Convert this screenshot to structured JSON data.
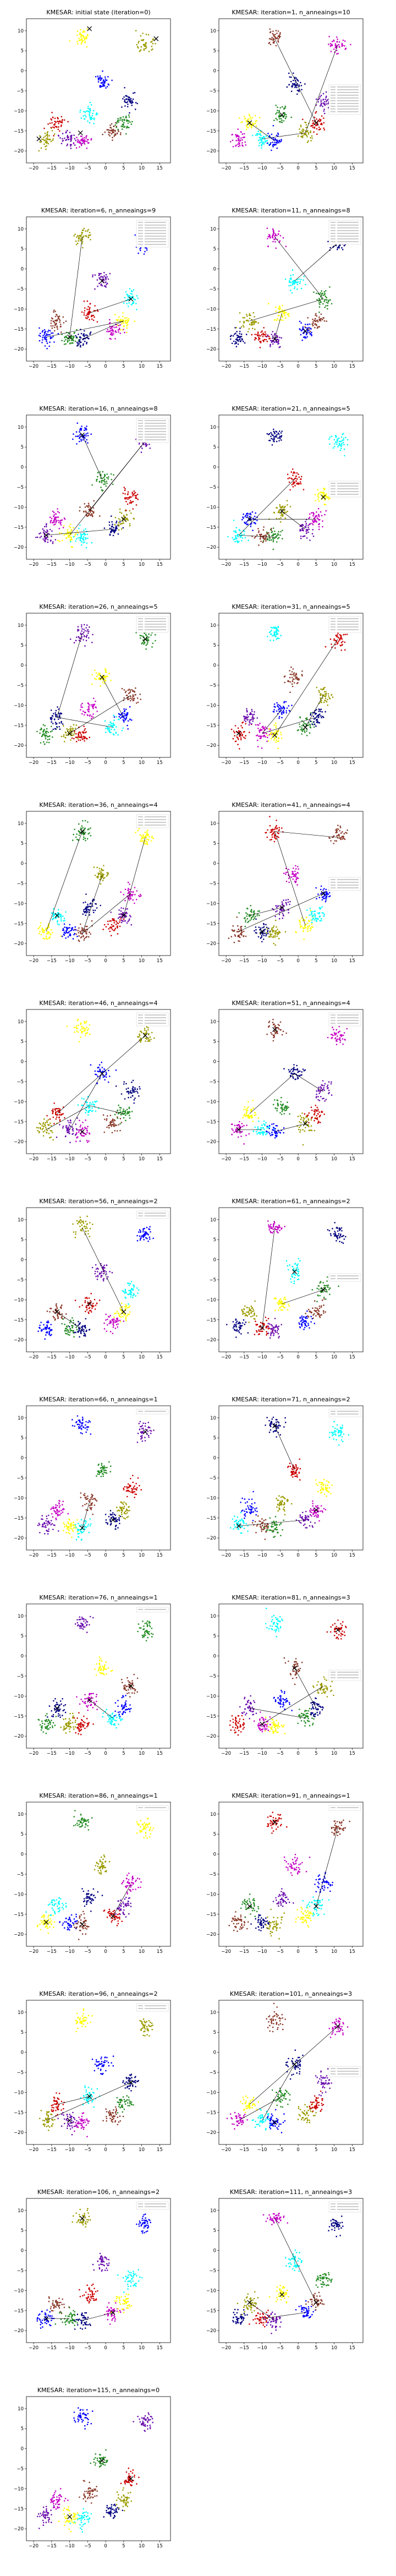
{
  "figure": {
    "cluster_colors": [
      "#9b9b00",
      "#cc0000",
      "#6a0dad",
      "#c400c4",
      "#ffff00",
      "#00ffff",
      "#0000ff",
      "#8b3a2a",
      "#228b22",
      "#000080"
    ],
    "panels": [
      {
        "title": "KMESAR: initial state (iteration=0)",
        "legend_entries": 0
      },
      {
        "title": "KMESAR: iteration=1, n_anneaings=10",
        "legend_entries": 10
      },
      {
        "title": "KMESAR: iteration=6, n_anneaings=9",
        "legend_entries": 9
      },
      {
        "title": "KMESAR: iteration=11, n_anneaings=8",
        "legend_entries": 8
      },
      {
        "title": "KMESAR: iteration=16, n_anneaings=8",
        "legend_entries": 8
      },
      {
        "title": "KMESAR: iteration=21, n_anneaings=5",
        "legend_entries": 5
      },
      {
        "title": "KMESAR: iteration=26, n_anneaings=5",
        "legend_entries": 5
      },
      {
        "title": "KMESAR: iteration=31, n_anneaings=5",
        "legend_entries": 5
      },
      {
        "title": "KMESAR: iteration=36, n_anneaings=4",
        "legend_entries": 4
      },
      {
        "title": "KMESAR: iteration=41, n_anneaings=4",
        "legend_entries": 4
      },
      {
        "title": "KMESAR: iteration=46, n_anneaings=4",
        "legend_entries": 4
      },
      {
        "title": "KMESAR: iteration=51, n_anneaings=4",
        "legend_entries": 4
      },
      {
        "title": "KMESAR: iteration=56, n_anneaings=2",
        "legend_entries": 2
      },
      {
        "title": "KMESAR: iteration=61, n_anneaings=2",
        "legend_entries": 2
      },
      {
        "title": "KMESAR: iteration=66, n_anneaings=1",
        "legend_entries": 1
      },
      {
        "title": "KMESAR: iteration=71, n_anneaings=2",
        "legend_entries": 2
      },
      {
        "title": "KMESAR: iteration=76, n_anneaings=1",
        "legend_entries": 1
      },
      {
        "title": "KMESAR: iteration=81, n_anneaings=3",
        "legend_entries": 3
      },
      {
        "title": "KMESAR: iteration=86, n_anneaings=1",
        "legend_entries": 1
      },
      {
        "title": "KMESAR: iteration=91, n_anneaings=1",
        "legend_entries": 1
      },
      {
        "title": "KMESAR: iteration=96, n_anneaings=2",
        "legend_entries": 2
      },
      {
        "title": "KMESAR: iteration=101, n_anneaings=3",
        "legend_entries": 3
      },
      {
        "title": "KMESAR: iteration=106, n_anneaings=2",
        "legend_entries": 2
      },
      {
        "title": "KMESAR: iteration=111, n_anneaings=3",
        "legend_entries": 3
      },
      {
        "title": "KMESAR: iteration=115, n_anneaings=0",
        "legend_entries": 0
      }
    ]
  },
  "chart_data": {
    "type": "scatter",
    "subplots": 25,
    "layout": "13 rows x 2 columns",
    "xlim": [
      -22,
      18
    ],
    "ylim": [
      -23,
      13
    ],
    "xticks": [
      -20,
      -15,
      -10,
      -5,
      0,
      5,
      10,
      15
    ],
    "yticks": [
      10,
      5,
      0,
      -5,
      -10,
      -15,
      -20
    ],
    "grid": false,
    "legend_placement": "right side",
    "blob_centers": [
      [
        -16.5,
        -17.0
      ],
      [
        -13.5,
        -13.0
      ],
      [
        -10.0,
        -17.0
      ],
      [
        -6.5,
        -17.5
      ],
      [
        -6.5,
        8.0
      ],
      [
        -4.5,
        -11.0
      ],
      [
        -1.0,
        -3.0
      ],
      [
        2.0,
        -15.5
      ],
      [
        5.0,
        -13.0
      ],
      [
        7.0,
        -7.5
      ],
      [
        11.0,
        6.5
      ]
    ],
    "initial_centroids": [
      [
        -4.5,
        10.5
      ],
      [
        14.0,
        8.0
      ],
      [
        -18.5,
        -17.0
      ],
      [
        -7.0,
        -15.5
      ]
    ]
  }
}
